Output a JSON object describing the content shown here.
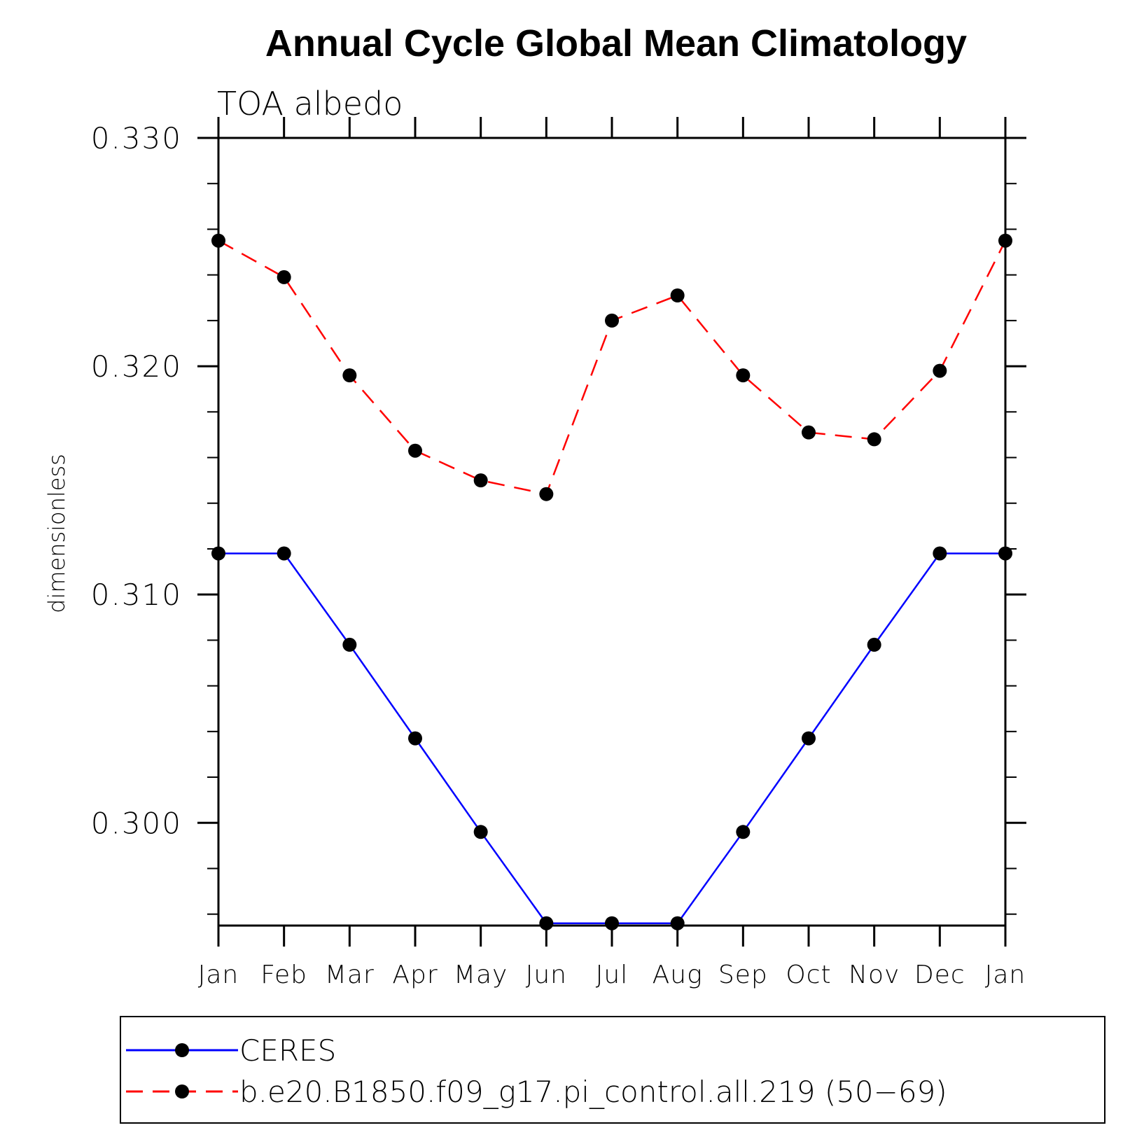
{
  "chart_data": {
    "type": "line",
    "title": "Annual Cycle Global Mean Climatology",
    "subtitle": "TOA albedo",
    "xlabel": "",
    "ylabel": "dimensionless",
    "categories": [
      "Jan",
      "Feb",
      "Mar",
      "Apr",
      "May",
      "Jun",
      "Jul",
      "Aug",
      "Sep",
      "Oct",
      "Nov",
      "Dec",
      "Jan"
    ],
    "ylim": [
      0.2955,
      0.33
    ],
    "yticks": [
      0.3,
      0.31,
      0.32,
      0.33
    ],
    "ytick_labels": [
      "0.300",
      "0.310",
      "0.320",
      "0.330"
    ],
    "grid": false,
    "legend_position": "bottom",
    "series": [
      {
        "name": "CERES",
        "color": "#0000ff",
        "line_style": "solid",
        "marker": "circle",
        "values": [
          0.3118,
          0.3118,
          0.3078,
          0.3037,
          0.2996,
          0.2956,
          0.2956,
          0.2956,
          0.2996,
          0.3037,
          0.3078,
          0.3118,
          0.3118
        ]
      },
      {
        "name": "b.e20.B1850.f09_g17.pi_control.all.219 (50−69)",
        "color": "#ff0000",
        "line_style": "dashed",
        "marker": "circle",
        "values": [
          0.3255,
          0.3239,
          0.3196,
          0.3163,
          0.315,
          0.3144,
          0.322,
          0.3231,
          0.3196,
          0.3171,
          0.3168,
          0.3198,
          0.3255
        ]
      }
    ]
  }
}
